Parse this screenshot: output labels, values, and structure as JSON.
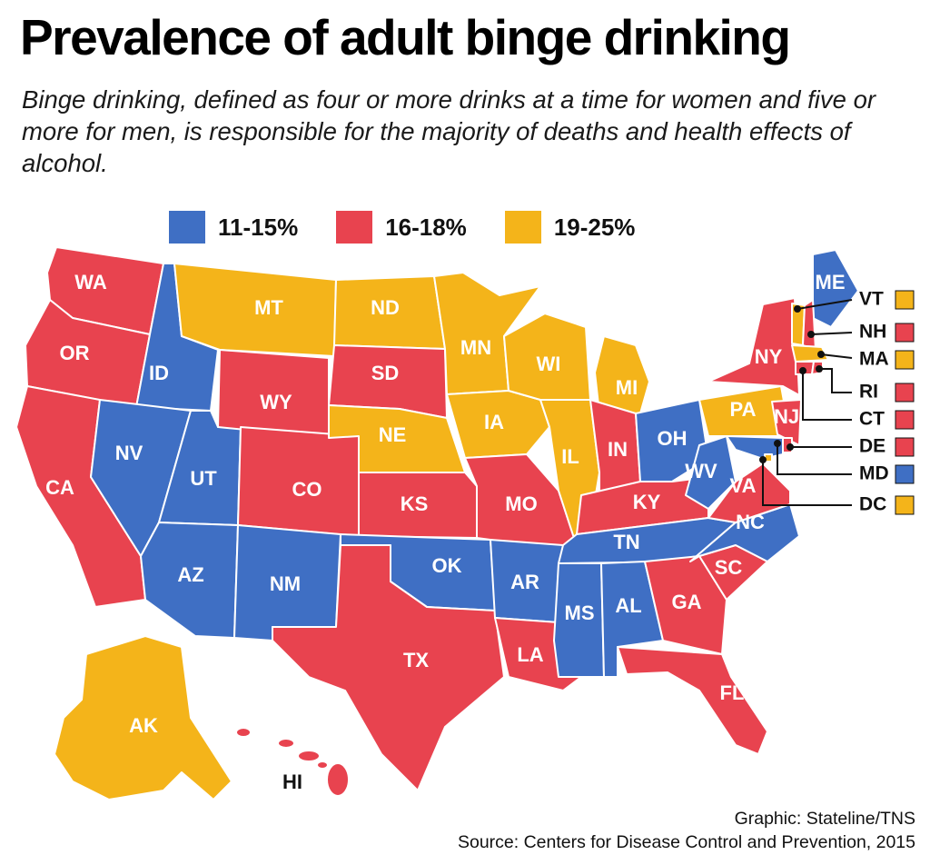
{
  "title": "Prevalence of adult binge drinking",
  "subtitle": "Binge drinking, defined as four or more drinks at a time for women and five or more for men, is responsible for the majority of deaths and health effects of alcohol.",
  "colors": {
    "low": "#3f6fc4",
    "mid": "#e8434f",
    "high": "#f4b41a",
    "border": "#ffffff"
  },
  "legend": [
    {
      "label": "11-15%",
      "category": "low"
    },
    {
      "label": "16-18%",
      "category": "mid"
    },
    {
      "label": "19-25%",
      "category": "high"
    }
  ],
  "states": [
    {
      "abbr": "WA",
      "category": "mid"
    },
    {
      "abbr": "OR",
      "category": "mid"
    },
    {
      "abbr": "CA",
      "category": "mid"
    },
    {
      "abbr": "ID",
      "category": "low"
    },
    {
      "abbr": "NV",
      "category": "low"
    },
    {
      "abbr": "UT",
      "category": "low"
    },
    {
      "abbr": "AZ",
      "category": "low"
    },
    {
      "abbr": "MT",
      "category": "high"
    },
    {
      "abbr": "WY",
      "category": "mid"
    },
    {
      "abbr": "CO",
      "category": "mid"
    },
    {
      "abbr": "NM",
      "category": "low"
    },
    {
      "abbr": "ND",
      "category": "high"
    },
    {
      "abbr": "SD",
      "category": "mid"
    },
    {
      "abbr": "NE",
      "category": "high"
    },
    {
      "abbr": "KS",
      "category": "mid"
    },
    {
      "abbr": "OK",
      "category": "low"
    },
    {
      "abbr": "TX",
      "category": "mid"
    },
    {
      "abbr": "MN",
      "category": "high"
    },
    {
      "abbr": "IA",
      "category": "high"
    },
    {
      "abbr": "MO",
      "category": "mid"
    },
    {
      "abbr": "AR",
      "category": "low"
    },
    {
      "abbr": "LA",
      "category": "mid"
    },
    {
      "abbr": "WI",
      "category": "high"
    },
    {
      "abbr": "IL",
      "category": "high"
    },
    {
      "abbr": "MI",
      "category": "high"
    },
    {
      "abbr": "IN",
      "category": "mid"
    },
    {
      "abbr": "OH",
      "category": "low"
    },
    {
      "abbr": "KY",
      "category": "mid"
    },
    {
      "abbr": "TN",
      "category": "low"
    },
    {
      "abbr": "MS",
      "category": "low"
    },
    {
      "abbr": "AL",
      "category": "low"
    },
    {
      "abbr": "GA",
      "category": "mid"
    },
    {
      "abbr": "FL",
      "category": "mid"
    },
    {
      "abbr": "SC",
      "category": "mid"
    },
    {
      "abbr": "NC",
      "category": "low"
    },
    {
      "abbr": "VA",
      "category": "mid"
    },
    {
      "abbr": "WV",
      "category": "low"
    },
    {
      "abbr": "PA",
      "category": "high"
    },
    {
      "abbr": "NY",
      "category": "mid"
    },
    {
      "abbr": "NJ",
      "category": "mid"
    },
    {
      "abbr": "ME",
      "category": "low"
    },
    {
      "abbr": "AK",
      "category": "high"
    },
    {
      "abbr": "HI",
      "category": "mid"
    }
  ],
  "callouts": [
    {
      "abbr": "VT",
      "category": "high"
    },
    {
      "abbr": "NH",
      "category": "mid"
    },
    {
      "abbr": "MA",
      "category": "high"
    },
    {
      "abbr": "RI",
      "category": "mid"
    },
    {
      "abbr": "CT",
      "category": "mid"
    },
    {
      "abbr": "DE",
      "category": "mid"
    },
    {
      "abbr": "MD",
      "category": "low"
    },
    {
      "abbr": "DC",
      "category": "high"
    }
  ],
  "credit": {
    "graphic": "Graphic: Stateline/TNS",
    "source": "Source: Centers for Disease Control and Prevention, 2015"
  }
}
